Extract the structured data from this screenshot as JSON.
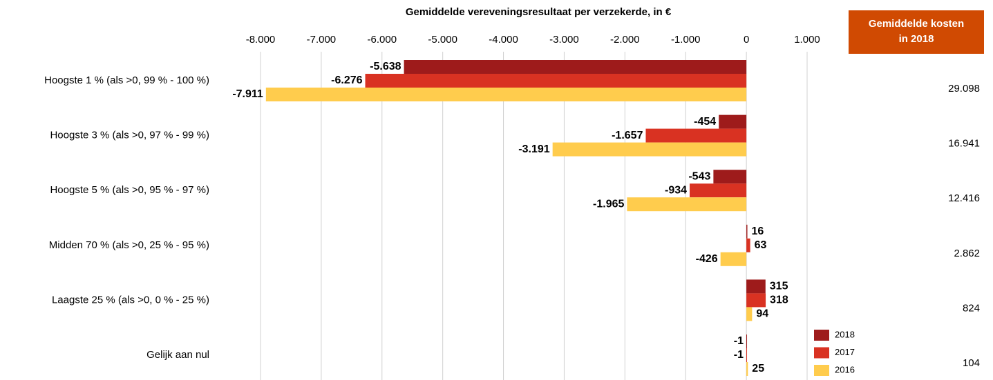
{
  "chart_data": {
    "type": "bar",
    "orientation": "horizontal",
    "title": "Gemiddelde vereveningsresultaat per verzekerde, in €",
    "categories": [
      "Hoogste 1 %  (als >0, 99 % - 100 %)",
      "Hoogste 3 %  (als >0, 97 % - 99 %)",
      "Hoogste 5 %  (als >0, 95 % - 97 %)",
      "Midden 70 % (als >0, 25 % - 95 %)",
      "Laagste 25 % (als >0, 0 % - 25 %)",
      "Gelijk aan nul"
    ],
    "series": [
      {
        "name": "2018",
        "color": "#9e1b1b",
        "values": [
          -5638,
          -454,
          -543,
          16,
          315,
          -1
        ],
        "value_labels": [
          "-5.638",
          "-454",
          "-543",
          "16",
          "315",
          "-1"
        ]
      },
      {
        "name": "2017",
        "color": "#d93222",
        "values": [
          -6276,
          -1657,
          -934,
          63,
          318,
          -1
        ],
        "value_labels": [
          "-6.276",
          "-1.657",
          "-934",
          "63",
          "318",
          "-1"
        ]
      },
      {
        "name": "2016",
        "color": "#ffcc4d",
        "values": [
          -7911,
          -3191,
          -1965,
          -426,
          94,
          25
        ],
        "value_labels": [
          "-7.911",
          "-3.191",
          "-1.965",
          "-426",
          "94",
          "25"
        ]
      }
    ],
    "xlim": [
      -8000,
      1000
    ],
    "xticks": [
      {
        "value": -8000,
        "label": "-8.000"
      },
      {
        "value": -7000,
        "label": "-7.000"
      },
      {
        "value": -6000,
        "label": "-6.000"
      },
      {
        "value": -5000,
        "label": "-5.000"
      },
      {
        "value": -4000,
        "label": "-4.000"
      },
      {
        "value": -3000,
        "label": "-3.000"
      },
      {
        "value": -2000,
        "label": "-2.000"
      },
      {
        "value": -1000,
        "label": "-1.000"
      },
      0,
      {
        "value": 1000,
        "label": "1.000"
      }
    ],
    "grid": true,
    "legend": "lower right",
    "cost_header": [
      "Gemiddelde kosten",
      "in 2018"
    ],
    "costs": [
      "29.098",
      "16.941",
      "12.416",
      "2.862",
      "824",
      "104"
    ]
  }
}
